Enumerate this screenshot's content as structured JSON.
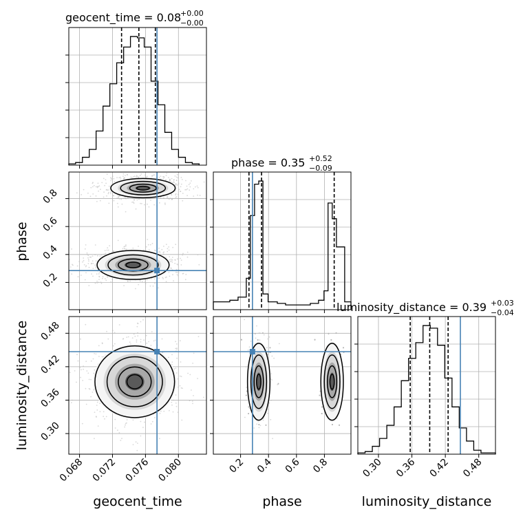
{
  "chart_data": {
    "type": "corner",
    "parameters": [
      "geocent_time",
      "phase",
      "luminosity_distance"
    ],
    "axis_labels": [
      "geocent_time",
      "phase",
      "luminosity_distance"
    ],
    "titles": [
      {
        "param": "geocent_time",
        "text": "geocent_time = 0.08",
        "plus": "+0.00",
        "minus": "−0.00"
      },
      {
        "param": "phase",
        "text": "phase = 0.35",
        "plus": "+0.52",
        "minus": "−0.09"
      },
      {
        "param": "luminosity_distance",
        "text": "luminosity_distance = 0.39",
        "plus": "+0.03",
        "minus": "−0.04"
      }
    ],
    "ranges": {
      "geocent_time": [
        0.0667,
        0.0834
      ],
      "phase": [
        0.005,
        0.99
      ],
      "luminosity_distance": [
        0.263,
        0.51
      ]
    },
    "ticks": {
      "geocent_time": {
        "values": [
          0.068,
          0.072,
          0.076,
          0.08
        ],
        "labels": [
          "0.068",
          "0.072",
          "0.076",
          "0.080"
        ]
      },
      "phase": {
        "values": [
          0.2,
          0.4,
          0.6,
          0.8
        ],
        "labels": [
          "0.2",
          "0.4",
          "0.6",
          "0.8"
        ]
      },
      "luminosity_distance": {
        "values": [
          0.3,
          0.36,
          0.42,
          0.48
        ],
        "labels": [
          "0.30",
          "0.36",
          "0.42",
          "0.48"
        ]
      }
    },
    "truths": {
      "geocent_time": 0.0774,
      "phase": 0.285,
      "luminosity_distance": 0.447
    },
    "quantiles": {
      "geocent_time": [
        0.0731,
        0.0752,
        0.0772
      ],
      "phase": [
        0.26,
        0.35,
        0.87
      ],
      "luminosity_distance": [
        0.357,
        0.392,
        0.425
      ]
    },
    "histograms": {
      "geocent_time": {
        "edges": [
          0.0667,
          0.06752,
          0.06835,
          0.06918,
          0.07001,
          0.07085,
          0.07168,
          0.07251,
          0.07335,
          0.07418,
          0.07502,
          0.07585,
          0.07668,
          0.07752,
          0.07835,
          0.07918,
          0.08001,
          0.08085,
          0.08168,
          0.08251
        ],
        "counts": [
          1,
          2,
          6,
          12,
          26,
          45,
          62,
          78,
          90,
          98,
          97,
          90,
          64,
          46,
          25,
          12,
          6,
          2,
          1
        ]
      },
      "phase": {
        "edges": [
          0.005,
          0.064,
          0.123,
          0.182,
          0.241,
          0.27,
          0.3,
          0.33,
          0.36,
          0.397,
          0.463,
          0.522,
          0.581,
          0.64,
          0.699,
          0.758,
          0.797,
          0.826,
          0.856,
          0.886,
          0.945,
          0.99
        ],
        "counts": [
          5,
          5,
          6,
          8,
          20,
          60,
          80,
          82,
          10,
          5,
          4,
          3,
          3,
          3,
          4,
          6,
          12,
          68,
          58,
          40,
          5
        ]
      },
      "luminosity_distance": {
        "edges": [
          0.263,
          0.276,
          0.289,
          0.302,
          0.315,
          0.328,
          0.341,
          0.354,
          0.367,
          0.38,
          0.393,
          0.406,
          0.419,
          0.432,
          0.445,
          0.458,
          0.471,
          0.484,
          0.497,
          0.51
        ],
        "counts": [
          1,
          2,
          6,
          12,
          22,
          36,
          56,
          73,
          85,
          98,
          96,
          83,
          58,
          36,
          20,
          10,
          3,
          1,
          1
        ]
      }
    },
    "joint": {
      "phase_vs_geocent_time": {
        "modes": [
          {
            "x": 0.0745,
            "y": 0.325,
            "sx": 0.0019,
            "sy": 0.045
          },
          {
            "x": 0.0757,
            "y": 0.875,
            "sx": 0.0017,
            "sy": 0.03
          }
        ]
      },
      "luminosity_distance_vs_geocent_time": {
        "modes": [
          {
            "x": 0.0747,
            "y": 0.393,
            "sx": 0.0021,
            "sy": 0.028
          }
        ]
      },
      "luminosity_distance_vs_phase": {
        "modes": [
          {
            "x": 0.33,
            "y": 0.393,
            "sx": 0.035,
            "sy": 0.03
          },
          {
            "x": 0.855,
            "y": 0.393,
            "sx": 0.035,
            "sy": 0.03
          }
        ]
      }
    }
  }
}
